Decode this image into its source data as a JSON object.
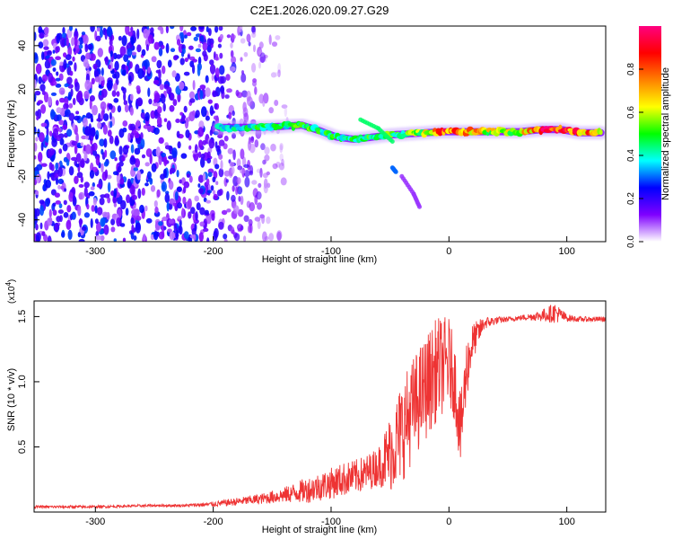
{
  "figure_title": "C2E1.2026.020.09.27.G29",
  "chart_data": [
    {
      "type": "heatmap",
      "title": "C2E1.2026.020.09.27.G29",
      "xlabel": "Height of straight line (km)",
      "ylabel": "Frequency (Hz)",
      "xlim": [
        -352,
        133
      ],
      "ylim": [
        -50,
        49
      ],
      "x_ticks": [
        -300,
        -200,
        -100,
        0,
        100
      ],
      "x_tick_labels": [
        "-300",
        "-200",
        "-100",
        "0",
        "100"
      ],
      "y_ticks": [
        -40,
        -20,
        0,
        20,
        40
      ],
      "y_tick_labels": [
        "-40",
        "-20",
        "0",
        "20",
        "40"
      ],
      "colorbar": {
        "label": "Normalized spectral amplitude",
        "range": [
          0,
          1
        ],
        "ticks": [
          0.0,
          0.2,
          0.4,
          0.6,
          0.8
        ],
        "tick_labels": [
          "0.0",
          "0.2",
          "0.4",
          "0.6",
          "0.8"
        ],
        "colormap": [
          "#ffffff",
          "#7f00ff",
          "#0000ff",
          "#00ffff",
          "#00ff00",
          "#ffff00",
          "#ff8000",
          "#ff0000",
          "#ff0080"
        ]
      },
      "noise_region": {
        "x_range": [
          -352,
          -140
        ],
        "freq_range": [
          -50,
          49
        ],
        "typical_amplitude": 0.15
      },
      "signal_track": [
        {
          "x": -195,
          "freq": 2.5,
          "amplitude": 0.35
        },
        {
          "x": -180,
          "freq": 2.5,
          "amplitude": 0.4
        },
        {
          "x": -160,
          "freq": 2.5,
          "amplitude": 0.45
        },
        {
          "x": -140,
          "freq": 3.0,
          "amplitude": 0.45
        },
        {
          "x": -125,
          "freq": 3.5,
          "amplitude": 0.5
        },
        {
          "x": -110,
          "freq": 1.0,
          "amplitude": 0.45
        },
        {
          "x": -95,
          "freq": -2.0,
          "amplitude": 0.45
        },
        {
          "x": -80,
          "freq": -3.0,
          "amplitude": 0.45
        },
        {
          "x": -65,
          "freq": -2.0,
          "amplitude": 0.5
        },
        {
          "x": -50,
          "freq": -1.0,
          "amplitude": 0.5
        },
        {
          "x": -35,
          "freq": -0.5,
          "amplitude": 0.5
        },
        {
          "x": -20,
          "freq": 0.0,
          "amplitude": 0.6
        },
        {
          "x": -5,
          "freq": 0.5,
          "amplitude": 0.8
        },
        {
          "x": 10,
          "freq": 0.5,
          "amplitude": 0.85
        },
        {
          "x": 30,
          "freq": 0.5,
          "amplitude": 0.6
        },
        {
          "x": 60,
          "freq": 0.5,
          "amplitude": 0.6
        },
        {
          "x": 80,
          "freq": 1.5,
          "amplitude": 0.9
        },
        {
          "x": 95,
          "freq": 1.5,
          "amplitude": 0.85
        },
        {
          "x": 110,
          "freq": 0.0,
          "amplitude": 0.8
        },
        {
          "x": 130,
          "freq": 0.0,
          "amplitude": 0.7
        }
      ],
      "secondary_traces": [
        {
          "x": [
            -75,
            -60,
            -48
          ],
          "freq": [
            6,
            2,
            -4
          ],
          "amplitude": 0.45
        },
        {
          "x": [
            -48,
            -45
          ],
          "freq": [
            -16,
            -18
          ],
          "amplitude": 0.3
        },
        {
          "x": [
            -40,
            -30,
            -25
          ],
          "freq": [
            -20,
            -28,
            -34
          ],
          "amplitude": 0.1
        }
      ]
    },
    {
      "type": "line",
      "xlabel": "Height of straight line (km)",
      "ylabel": "SNR (10 * v/v)",
      "y_multiplier": "(x10",
      "y_multiplier_exp": "4",
      "y_multiplier_close": ")",
      "xlim": [
        -352,
        133
      ],
      "ylim": [
        0,
        1.62
      ],
      "x_ticks": [
        -300,
        -200,
        -100,
        0,
        100
      ],
      "x_tick_labels": [
        "-300",
        "-200",
        "-100",
        "0",
        "100"
      ],
      "y_ticks": [
        0.5,
        1.0,
        1.5
      ],
      "y_tick_labels": [
        "0.5",
        "1.0",
        "1.5"
      ],
      "series": [
        {
          "color": "#ee3333",
          "x": [
            -352,
            -325,
            -300,
            -275,
            -250,
            -225,
            -200,
            -180,
            -160,
            -140,
            -120,
            -100,
            -90,
            -80,
            -70,
            -60,
            -50,
            -40,
            -30,
            -20,
            -10,
            0,
            5,
            10,
            15,
            20,
            30,
            40,
            50,
            60,
            70,
            80,
            90,
            100,
            110,
            120,
            133
          ],
          "y": [
            0.04,
            0.04,
            0.04,
            0.045,
            0.05,
            0.05,
            0.06,
            0.08,
            0.1,
            0.13,
            0.17,
            0.22,
            0.25,
            0.27,
            0.3,
            0.35,
            0.45,
            0.62,
            0.8,
            0.95,
            1.1,
            1.15,
            1.0,
            0.6,
            1.1,
            1.3,
            1.45,
            1.47,
            1.48,
            1.49,
            1.5,
            1.51,
            1.53,
            1.49,
            1.48,
            1.48,
            1.48
          ],
          "noise_amplitude": [
            0.01,
            0.01,
            0.01,
            0.01,
            0.01,
            0.01,
            0.02,
            0.03,
            0.04,
            0.06,
            0.1,
            0.12,
            0.13,
            0.13,
            0.14,
            0.15,
            0.3,
            0.4,
            0.4,
            0.4,
            0.4,
            0.35,
            0.3,
            0.3,
            0.25,
            0.15,
            0.05,
            0.03,
            0.02,
            0.02,
            0.03,
            0.05,
            0.08,
            0.03,
            0.02,
            0.02,
            0.02
          ]
        }
      ]
    }
  ]
}
